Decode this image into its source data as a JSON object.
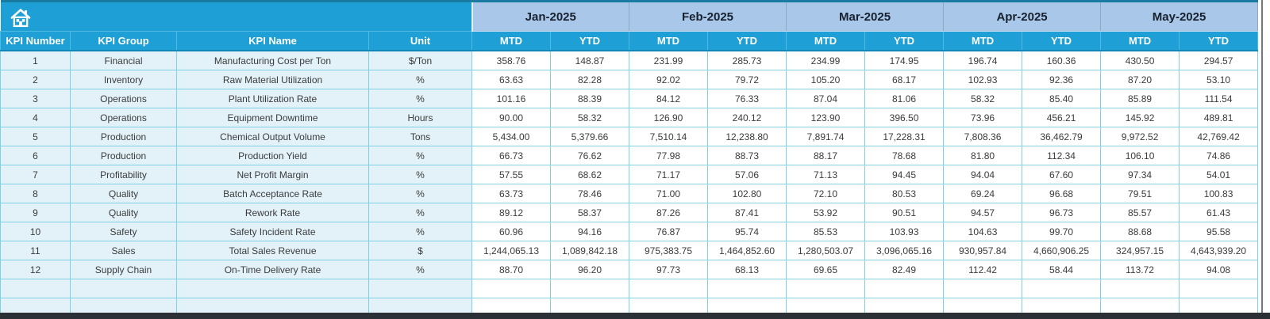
{
  "table": {
    "columns": [
      "KPI Number",
      "KPI Group",
      "KPI Name",
      "Unit"
    ],
    "months": [
      "Jan-2025",
      "Feb-2025",
      "Mar-2025",
      "Apr-2025",
      "May-2025"
    ],
    "subheaders": [
      "MTD",
      "YTD"
    ],
    "rows": [
      {
        "number": "1",
        "group": "Financial",
        "name": "Manufacturing Cost per Ton",
        "unit": "$/Ton",
        "values": [
          "358.76",
          "148.87",
          "231.99",
          "285.73",
          "234.99",
          "174.95",
          "196.74",
          "160.36",
          "430.50",
          "294.57"
        ]
      },
      {
        "number": "2",
        "group": "Inventory",
        "name": "Raw Material Utilization",
        "unit": "%",
        "values": [
          "63.63",
          "82.28",
          "92.02",
          "79.72",
          "105.20",
          "68.17",
          "102.93",
          "92.36",
          "87.20",
          "53.10"
        ]
      },
      {
        "number": "3",
        "group": "Operations",
        "name": "Plant Utilization Rate",
        "unit": "%",
        "values": [
          "101.16",
          "88.39",
          "84.12",
          "76.33",
          "87.04",
          "81.06",
          "58.32",
          "85.40",
          "85.89",
          "111.54"
        ]
      },
      {
        "number": "4",
        "group": "Operations",
        "name": "Equipment Downtime",
        "unit": "Hours",
        "values": [
          "90.00",
          "58.32",
          "126.90",
          "240.12",
          "123.90",
          "396.50",
          "73.96",
          "456.21",
          "145.92",
          "489.81"
        ]
      },
      {
        "number": "5",
        "group": "Production",
        "name": "Chemical Output Volume",
        "unit": "Tons",
        "values": [
          "5,434.00",
          "5,379.66",
          "7,510.14",
          "12,238.80",
          "7,891.74",
          "17,228.31",
          "7,808.36",
          "36,462.79",
          "9,972.52",
          "42,769.42"
        ]
      },
      {
        "number": "6",
        "group": "Production",
        "name": "Production Yield",
        "unit": "%",
        "values": [
          "66.73",
          "76.62",
          "77.98",
          "88.73",
          "88.17",
          "78.68",
          "81.80",
          "112.34",
          "106.10",
          "74.86"
        ]
      },
      {
        "number": "7",
        "group": "Profitability",
        "name": "Net Profit Margin",
        "unit": "%",
        "values": [
          "57.55",
          "68.62",
          "71.17",
          "57.06",
          "71.13",
          "94.45",
          "94.04",
          "67.60",
          "97.34",
          "54.01"
        ]
      },
      {
        "number": "8",
        "group": "Quality",
        "name": "Batch Acceptance Rate",
        "unit": "%",
        "values": [
          "63.73",
          "78.46",
          "71.00",
          "102.80",
          "72.10",
          "80.53",
          "69.24",
          "96.68",
          "79.51",
          "100.83"
        ]
      },
      {
        "number": "9",
        "group": "Quality",
        "name": "Rework Rate",
        "unit": "%",
        "values": [
          "89.12",
          "58.37",
          "87.26",
          "87.41",
          "53.92",
          "90.51",
          "94.57",
          "96.73",
          "85.57",
          "61.43"
        ]
      },
      {
        "number": "10",
        "group": "Safety",
        "name": "Safety Incident Rate",
        "unit": "%",
        "values": [
          "60.96",
          "94.16",
          "76.87",
          "95.74",
          "85.53",
          "103.93",
          "104.63",
          "99.70",
          "88.68",
          "95.58"
        ]
      },
      {
        "number": "11",
        "group": "Sales",
        "name": "Total Sales Revenue",
        "unit": "$",
        "values": [
          "1,244,065.13",
          "1,089,842.18",
          "975,383.75",
          "1,464,852.60",
          "1,280,503.07",
          "3,096,065.16",
          "930,957.84",
          "4,660,906.25",
          "324,957.15",
          "4,643,939.20"
        ]
      },
      {
        "number": "12",
        "group": "Supply Chain",
        "name": "On-Time Delivery Rate",
        "unit": "%",
        "values": [
          "88.70",
          "96.20",
          "97.73",
          "68.13",
          "69.65",
          "82.49",
          "112.42",
          "58.44",
          "113.72",
          "94.08"
        ]
      }
    ],
    "empty_rows": 2
  },
  "icons": {
    "home": "home"
  },
  "colors": {
    "header_cyan": "#1e9fd6",
    "month_band_blue": "#a9c7e8",
    "row_left_bg": "#e3f2f9",
    "grid_border": "#7fd2e3",
    "top_strip": "#1a7ba2",
    "bottom_bar": "#2b2f36"
  }
}
